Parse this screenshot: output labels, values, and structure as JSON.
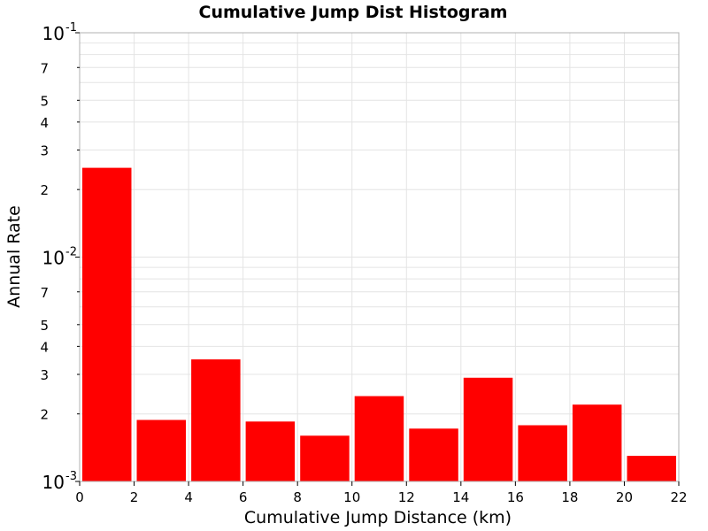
{
  "chart_data": {
    "type": "bar",
    "title": "Cumulative Jump Dist Histogram",
    "xlabel": "Cumulative Jump Distance (km)",
    "ylabel": "Annual Rate",
    "xlim": [
      0,
      22
    ],
    "ylim": [
      0.001,
      0.1
    ],
    "yscale": "log",
    "grid": true,
    "bar_color": "#ff0000",
    "x_ticks": [
      "0",
      "2",
      "4",
      "6",
      "8",
      "10",
      "12",
      "14",
      "16",
      "18",
      "20",
      "22"
    ],
    "y_major_ticks": [
      {
        "value": 0.1,
        "base": "10",
        "exp": "-1"
      },
      {
        "value": 0.01,
        "base": "10",
        "exp": "-2"
      },
      {
        "value": 0.001,
        "base": "10",
        "exp": "-3"
      }
    ],
    "y_minor_labels": [
      {
        "value": 0.07,
        "label": "7"
      },
      {
        "value": 0.05,
        "label": "5"
      },
      {
        "value": 0.04,
        "label": "4"
      },
      {
        "value": 0.03,
        "label": "3"
      },
      {
        "value": 0.02,
        "label": "2"
      },
      {
        "value": 0.007,
        "label": "7"
      },
      {
        "value": 0.005,
        "label": "5"
      },
      {
        "value": 0.004,
        "label": "4"
      },
      {
        "value": 0.003,
        "label": "3"
      },
      {
        "value": 0.002,
        "label": "2"
      }
    ],
    "bins": [
      {
        "x0": 0,
        "x1": 2,
        "value": 0.025
      },
      {
        "x0": 2,
        "x1": 4,
        "value": 0.00188
      },
      {
        "x0": 4,
        "x1": 6,
        "value": 0.0035
      },
      {
        "x0": 6,
        "x1": 8,
        "value": 0.00185
      },
      {
        "x0": 8,
        "x1": 10,
        "value": 0.0016
      },
      {
        "x0": 10,
        "x1": 12,
        "value": 0.0024
      },
      {
        "x0": 12,
        "x1": 14,
        "value": 0.00172
      },
      {
        "x0": 14,
        "x1": 16,
        "value": 0.0029
      },
      {
        "x0": 16,
        "x1": 18,
        "value": 0.00178
      },
      {
        "x0": 18,
        "x1": 20,
        "value": 0.0022
      },
      {
        "x0": 20,
        "x1": 22,
        "value": 0.0013
      }
    ]
  }
}
